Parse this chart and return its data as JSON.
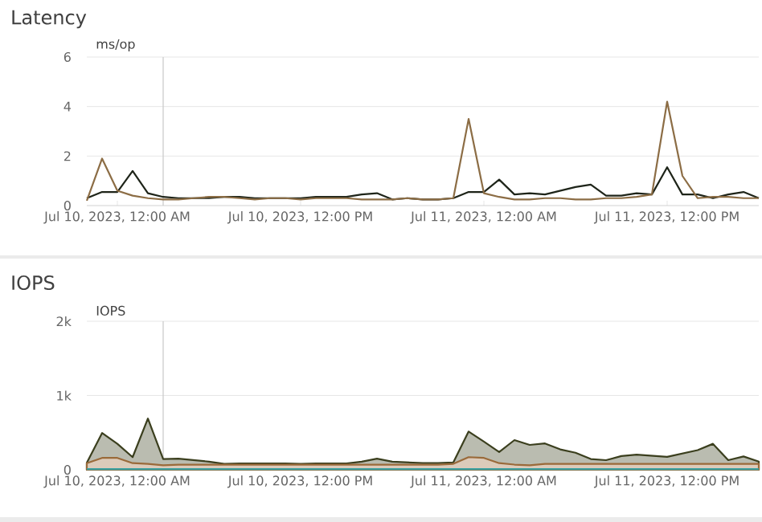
{
  "chart_data": [
    {
      "type": "line",
      "title": "Latency",
      "ylabel": "ms/op",
      "x": [
        "2023-07-09T22:00",
        "2023-07-09T23:00",
        "2023-07-10T00:00",
        "2023-07-10T01:00",
        "2023-07-10T02:00",
        "2023-07-10T03:00",
        "2023-07-10T04:00",
        "2023-07-10T05:00",
        "2023-07-10T06:00",
        "2023-07-10T07:00",
        "2023-07-10T08:00",
        "2023-07-10T09:00",
        "2023-07-10T10:00",
        "2023-07-10T11:00",
        "2023-07-10T12:00",
        "2023-07-10T13:00",
        "2023-07-10T14:00",
        "2023-07-10T15:00",
        "2023-07-10T16:00",
        "2023-07-10T17:00",
        "2023-07-10T18:00",
        "2023-07-10T19:00",
        "2023-07-10T20:00",
        "2023-07-10T21:00",
        "2023-07-10T22:00",
        "2023-07-10T23:00",
        "2023-07-11T00:00",
        "2023-07-11T01:00",
        "2023-07-11T02:00",
        "2023-07-11T03:00",
        "2023-07-11T04:00",
        "2023-07-11T05:00",
        "2023-07-11T06:00",
        "2023-07-11T07:00",
        "2023-07-11T08:00",
        "2023-07-11T09:00",
        "2023-07-11T10:00",
        "2023-07-11T11:00",
        "2023-07-11T12:00",
        "2023-07-11T13:00",
        "2023-07-11T14:00",
        "2023-07-11T15:00",
        "2023-07-11T16:00",
        "2023-07-11T17:00",
        "2023-07-11T18:00"
      ],
      "series": [
        {
          "color": "#1e2419",
          "values": [
            0.3,
            0.55,
            0.55,
            1.4,
            0.5,
            0.35,
            0.3,
            0.3,
            0.3,
            0.35,
            0.35,
            0.3,
            0.3,
            0.3,
            0.3,
            0.35,
            0.35,
            0.35,
            0.45,
            0.5,
            0.25,
            0.3,
            0.25,
            0.25,
            0.3,
            0.55,
            0.55,
            1.05,
            0.45,
            0.5,
            0.45,
            0.6,
            0.75,
            0.85,
            0.4,
            0.4,
            0.5,
            0.45,
            1.55,
            0.45,
            0.45,
            0.3,
            0.45,
            0.55,
            0.3
          ]
        },
        {
          "color": "#8c6d45",
          "values": [
            0.2,
            1.9,
            0.6,
            0.4,
            0.3,
            0.25,
            0.25,
            0.3,
            0.35,
            0.35,
            0.3,
            0.25,
            0.3,
            0.3,
            0.25,
            0.3,
            0.3,
            0.3,
            0.25,
            0.25,
            0.25,
            0.3,
            0.25,
            0.25,
            0.3,
            3.5,
            0.5,
            0.35,
            0.25,
            0.25,
            0.3,
            0.3,
            0.25,
            0.25,
            0.3,
            0.3,
            0.35,
            0.45,
            4.2,
            1.2,
            0.3,
            0.35,
            0.35,
            0.3,
            0.3
          ]
        }
      ],
      "xlim": [
        "2023-07-09T22:00",
        "2023-07-11T18:00"
      ],
      "xticks": [
        {
          "value": "2023-07-10T00:00",
          "label": "Jul 10, 2023, 12:00 AM"
        },
        {
          "value": "2023-07-10T12:00",
          "label": "Jul 10, 2023, 12:00 PM"
        },
        {
          "value": "2023-07-11T00:00",
          "label": "Jul 11, 2023, 12:00 AM"
        },
        {
          "value": "2023-07-11T12:00",
          "label": "Jul 11, 2023, 12:00 PM"
        }
      ],
      "ylim": [
        0,
        6
      ],
      "yticks": [
        0,
        2,
        4,
        6
      ],
      "grid": "y",
      "ref_lines": [
        {
          "axis": "x",
          "value": "2023-07-10T03:00",
          "color": "#c8c8c8"
        }
      ]
    },
    {
      "type": "area",
      "title": "IOPS",
      "ylabel": "IOPS",
      "x": [
        "2023-07-09T22:00",
        "2023-07-09T23:00",
        "2023-07-10T00:00",
        "2023-07-10T01:00",
        "2023-07-10T02:00",
        "2023-07-10T03:00",
        "2023-07-10T04:00",
        "2023-07-10T05:00",
        "2023-07-10T06:00",
        "2023-07-10T07:00",
        "2023-07-10T08:00",
        "2023-07-10T09:00",
        "2023-07-10T10:00",
        "2023-07-10T11:00",
        "2023-07-10T12:00",
        "2023-07-10T13:00",
        "2023-07-10T14:00",
        "2023-07-10T15:00",
        "2023-07-10T16:00",
        "2023-07-10T17:00",
        "2023-07-10T18:00",
        "2023-07-10T19:00",
        "2023-07-10T20:00",
        "2023-07-10T21:00",
        "2023-07-10T22:00",
        "2023-07-10T23:00",
        "2023-07-11T00:00",
        "2023-07-11T01:00",
        "2023-07-11T02:00",
        "2023-07-11T03:00",
        "2023-07-11T04:00",
        "2023-07-11T05:00",
        "2023-07-11T06:00",
        "2023-07-11T07:00",
        "2023-07-11T08:00",
        "2023-07-11T09:00",
        "2023-07-11T10:00",
        "2023-07-11T11:00",
        "2023-07-11T12:00",
        "2023-07-11T13:00",
        "2023-07-11T14:00",
        "2023-07-11T15:00",
        "2023-07-11T16:00",
        "2023-07-11T17:00",
        "2023-07-11T18:00"
      ],
      "series": [
        {
          "color": "#3b3f1e",
          "values": [
            95,
            495,
            350,
            170,
            690,
            145,
            150,
            130,
            110,
            80,
            85,
            85,
            85,
            85,
            80,
            85,
            85,
            85,
            110,
            150,
            110,
            100,
            90,
            90,
            100,
            515,
            380,
            240,
            400,
            335,
            355,
            275,
            230,
            145,
            130,
            185,
            205,
            190,
            175,
            220,
            265,
            350,
            130,
            180,
            110
          ]
        },
        {
          "color": "#9a6a3a",
          "values": [
            90,
            160,
            160,
            90,
            80,
            60,
            70,
            70,
            70,
            70,
            70,
            70,
            70,
            70,
            70,
            70,
            70,
            70,
            70,
            70,
            70,
            70,
            70,
            70,
            80,
            170,
            160,
            90,
            70,
            60,
            80,
            80,
            80,
            80,
            80,
            80,
            80,
            80,
            80,
            80,
            80,
            80,
            80,
            80,
            80
          ]
        },
        {
          "color": "#3aa0a0",
          "type": "line",
          "values": [
            10,
            10,
            10,
            10,
            10,
            10,
            10,
            10,
            10,
            10,
            10,
            10,
            10,
            10,
            10,
            10,
            10,
            10,
            10,
            10,
            10,
            10,
            10,
            10,
            10,
            10,
            10,
            10,
            10,
            10,
            10,
            10,
            10,
            10,
            10,
            10,
            10,
            10,
            10,
            10,
            10,
            10,
            10,
            10,
            10
          ]
        }
      ],
      "xlim": [
        "2023-07-09T22:00",
        "2023-07-11T18:00"
      ],
      "xticks": [
        {
          "value": "2023-07-10T00:00",
          "label": "Jul 10, 2023, 12:00 AM"
        },
        {
          "value": "2023-07-10T12:00",
          "label": "Jul 10, 2023, 12:00 PM"
        },
        {
          "value": "2023-07-11T00:00",
          "label": "Jul 11, 2023, 12:00 AM"
        },
        {
          "value": "2023-07-11T12:00",
          "label": "Jul 11, 2023, 12:00 PM"
        }
      ],
      "ylim": [
        0,
        2000
      ],
      "yticks": [
        0,
        {
          "value": 1000,
          "label": "1k"
        },
        {
          "value": 2000,
          "label": "2k"
        }
      ],
      "grid": "y",
      "ref_lines": [
        {
          "axis": "x",
          "value": "2023-07-10T03:00",
          "color": "#c8c8c8"
        }
      ]
    }
  ]
}
